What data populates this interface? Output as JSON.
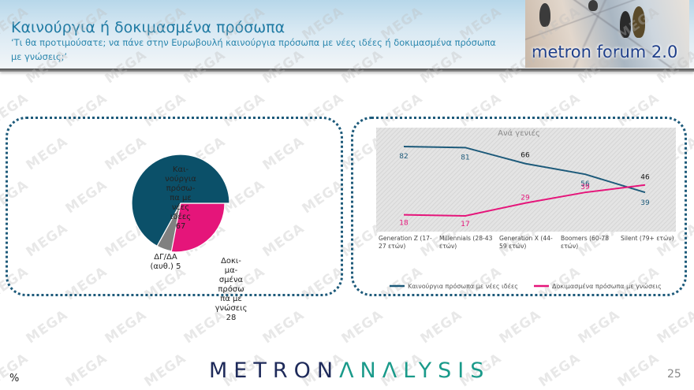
{
  "header": {
    "title": "Καινούργια ή δοκιμασμένα πρόσωπα",
    "subtitle": "‘Τι θα προτιμούσατε; να πάνε στην Ευρωβουλή καινούργια πρόσωπα με νέες ιδέες ή δοκιμασμένα πρόσωπα με γνώσεις;’",
    "logo_text": "metron forum 2.0"
  },
  "watermark_text": "MEGA",
  "pie": {
    "slices": [
      {
        "label_lines": [
          "Και-",
          "νούργια",
          "πρόσω-",
          "πα με",
          "νέες",
          "ιδέες",
          "67"
        ],
        "value": 67,
        "color": "#0b5069"
      },
      {
        "label_lines": [
          "Δοκι-",
          "μα-",
          "σμένα",
          "πρόσω",
          "πα με",
          "γνώσεις",
          "28"
        ],
        "value": 28,
        "color": "#e5157a"
      },
      {
        "label_lines": [
          "ΔΓ/ΔΑ",
          "(αυθ.) 5"
        ],
        "value": 5,
        "color": "#808080"
      }
    ]
  },
  "line_chart": {
    "title": "Ανά γενιές",
    "categories": [
      [
        "Generation Z (17-",
        "27 ετών)"
      ],
      [
        "Millennials (28-43",
        "ετών)"
      ],
      [
        "Generation X (44-",
        "59 ετών)"
      ],
      [
        "Boomers (60-78",
        "ετών)"
      ],
      [
        "Silent (79+ ετών)"
      ]
    ],
    "series": [
      {
        "name": "Καινούργια πρόσωπα με νέες ιδέες",
        "color": "#1d5a7a",
        "values": [
          82,
          81,
          66,
          56,
          39
        ]
      },
      {
        "name": "Δοκιμασμένα πρόσωπα με γνώσεις",
        "color": "#e5157a",
        "values": [
          18,
          17,
          29,
          39,
          46
        ]
      }
    ]
  },
  "chart_data": [
    {
      "type": "pie",
      "title": "",
      "categories": [
        "Καινούργια πρόσωπα με νέες ιδέες",
        "Δοκιμασμένα πρόσωπα με γνώσεις",
        "ΔΓ/ΔΑ (αυθ.)"
      ],
      "values": [
        67,
        28,
        5
      ],
      "colors": [
        "#0b5069",
        "#e5157a",
        "#808080"
      ],
      "unit": "%"
    },
    {
      "type": "line",
      "title": "Ανά γενιές",
      "categories": [
        "Generation Z (17-27 ετών)",
        "Millennials (28-43 ετών)",
        "Generation X (44-59 ετών)",
        "Boomers (60-78 ετών)",
        "Silent (79+ ετών)"
      ],
      "series": [
        {
          "name": "Καινούργια πρόσωπα με νέες ιδέες",
          "values": [
            82,
            81,
            66,
            56,
            39
          ]
        },
        {
          "name": "Δοκιμασμένα πρόσωπα με γνώσεις",
          "values": [
            18,
            17,
            29,
            39,
            46
          ]
        }
      ],
      "xlabel": "",
      "ylabel": "",
      "ylim": [
        0,
        100
      ],
      "grid": false,
      "legend_position": "bottom"
    }
  ],
  "footer": {
    "unit": "%",
    "brand_part1": "METRON",
    "brand_part2": "ΛNΛLYSIS",
    "page_number": "25"
  }
}
